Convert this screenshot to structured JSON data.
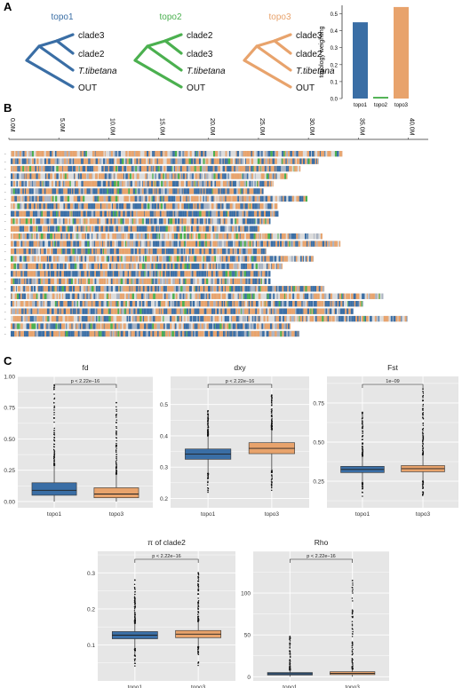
{
  "colors": {
    "topo1": "#3a6ea5",
    "topo2": "#4bb04f",
    "topo3": "#e8a36c",
    "panel_bg": "#e6e6e6",
    "grid": "#ffffff",
    "missing": "#dcdcdc"
  },
  "panel_a": {
    "letter": "A",
    "trees": [
      {
        "title": "topo1",
        "tips": [
          "clade3",
          "clade2",
          "T.tibetana",
          "OUT"
        ]
      },
      {
        "title": "topo2",
        "tips": [
          "clade2",
          "clade3",
          "T.tibetana",
          "OUT"
        ]
      },
      {
        "title": "topo3",
        "tips": [
          "clade3",
          "clade2",
          "T.tibetana",
          "OUT"
        ]
      }
    ],
    "weighting_chart": {
      "type": "bar",
      "ylabel": "topology weighting",
      "categories": [
        "topo1",
        "topo2",
        "topo3"
      ],
      "values": [
        0.45,
        0.01,
        0.54
      ],
      "ylim": [
        0,
        0.55
      ],
      "yticks": [
        "0.0",
        "0.1",
        "0.2",
        "0.3",
        "0.4",
        "0.5"
      ]
    }
  },
  "panel_b": {
    "letter": "B",
    "axis_ticks": [
      "0.0M",
      "5.0M",
      "10.0M",
      "15.0M",
      "20.0M",
      "25.0M",
      "30.0M",
      "35.0M",
      "40.0M"
    ],
    "axis_max_mb": 42,
    "chromosome_lengths_mb": [
      33.4,
      31.0,
      29.2,
      27.9,
      26.5,
      25.5,
      29.9,
      26.9,
      27.0,
      26.2,
      25.1,
      31.4,
      33.2,
      25.8,
      30.5,
      27.4,
      26.2,
      26.2,
      31.6,
      37.5,
      35.5,
      34.5,
      39.9,
      28.2,
      29.1
    ]
  },
  "chart_data": [
    {
      "type": "box",
      "title": "fd",
      "categories": [
        "topo1",
        "topo3"
      ],
      "ylim": [
        -0.05,
        1.0
      ],
      "yticks": [
        "0.00",
        "0.25",
        "0.50",
        "0.75",
        "1.00"
      ],
      "boxes": [
        {
          "q1": 0.05,
          "median": 0.09,
          "q3": 0.15,
          "whisker_low": 0.0,
          "whisker_high": 0.29
        },
        {
          "q1": 0.03,
          "median": 0.06,
          "q3": 0.11,
          "whisker_low": 0.0,
          "whisker_high": 0.22
        }
      ],
      "outlier_max": [
        0.93,
        0.79
      ],
      "pvalue": "p < 2.22e−16"
    },
    {
      "type": "box",
      "title": "dxy",
      "categories": [
        "topo1",
        "topo3"
      ],
      "ylim": [
        0.17,
        0.59
      ],
      "yticks": [
        "0.2",
        "0.3",
        "0.4",
        "0.5"
      ],
      "boxes": [
        {
          "q1": 0.325,
          "median": 0.342,
          "q3": 0.358,
          "whisker_low": 0.28,
          "whisker_high": 0.4
        },
        {
          "q1": 0.343,
          "median": 0.36,
          "q3": 0.378,
          "whisker_low": 0.29,
          "whisker_high": 0.42
        }
      ],
      "outlier_max": [
        0.48,
        0.53
      ],
      "pvalue": "p < 2.22e−16"
    },
    {
      "type": "box",
      "title": "Fst",
      "categories": [
        "topo1",
        "topo3"
      ],
      "ylim": [
        0.08,
        0.92
      ],
      "yticks": [
        "0.25",
        "0.50",
        "0.75"
      ],
      "boxes": [
        {
          "q1": 0.305,
          "median": 0.325,
          "q3": 0.345,
          "whisker_low": 0.24,
          "whisker_high": 0.41
        },
        {
          "q1": 0.31,
          "median": 0.33,
          "q3": 0.35,
          "whisker_low": 0.25,
          "whisker_high": 0.42
        }
      ],
      "outlier_max": [
        0.69,
        0.84
      ],
      "pvalue": "1e−09"
    },
    {
      "type": "box",
      "title": "π of clade2",
      "categories": [
        "topo1",
        "topo3"
      ],
      "ylim": [
        0.0,
        0.36
      ],
      "yticks": [
        "0.1",
        "0.2",
        "0.3"
      ],
      "boxes": [
        {
          "q1": 0.117,
          "median": 0.127,
          "q3": 0.137,
          "whisker_low": 0.09,
          "whisker_high": 0.16
        },
        {
          "q1": 0.12,
          "median": 0.13,
          "q3": 0.14,
          "whisker_low": 0.095,
          "whisker_high": 0.165
        }
      ],
      "outlier_max": [
        0.28,
        0.3
      ],
      "pvalue": "p < 2.22e−16"
    },
    {
      "type": "box",
      "title": "Rho",
      "categories": [
        "topo1",
        "topo3"
      ],
      "ylim": [
        -5,
        150
      ],
      "yticks": [
        "0",
        "50",
        "100"
      ],
      "boxes": [
        {
          "q1": 2,
          "median": 3.5,
          "q3": 5,
          "whisker_low": 0,
          "whisker_high": 8
        },
        {
          "q1": 2.5,
          "median": 4,
          "q3": 6,
          "whisker_low": 0,
          "whisker_high": 9
        }
      ],
      "outlier_max": [
        48,
        115
      ],
      "pvalue": "p < 2.22e−16"
    }
  ],
  "panel_c": {
    "letter": "C"
  }
}
